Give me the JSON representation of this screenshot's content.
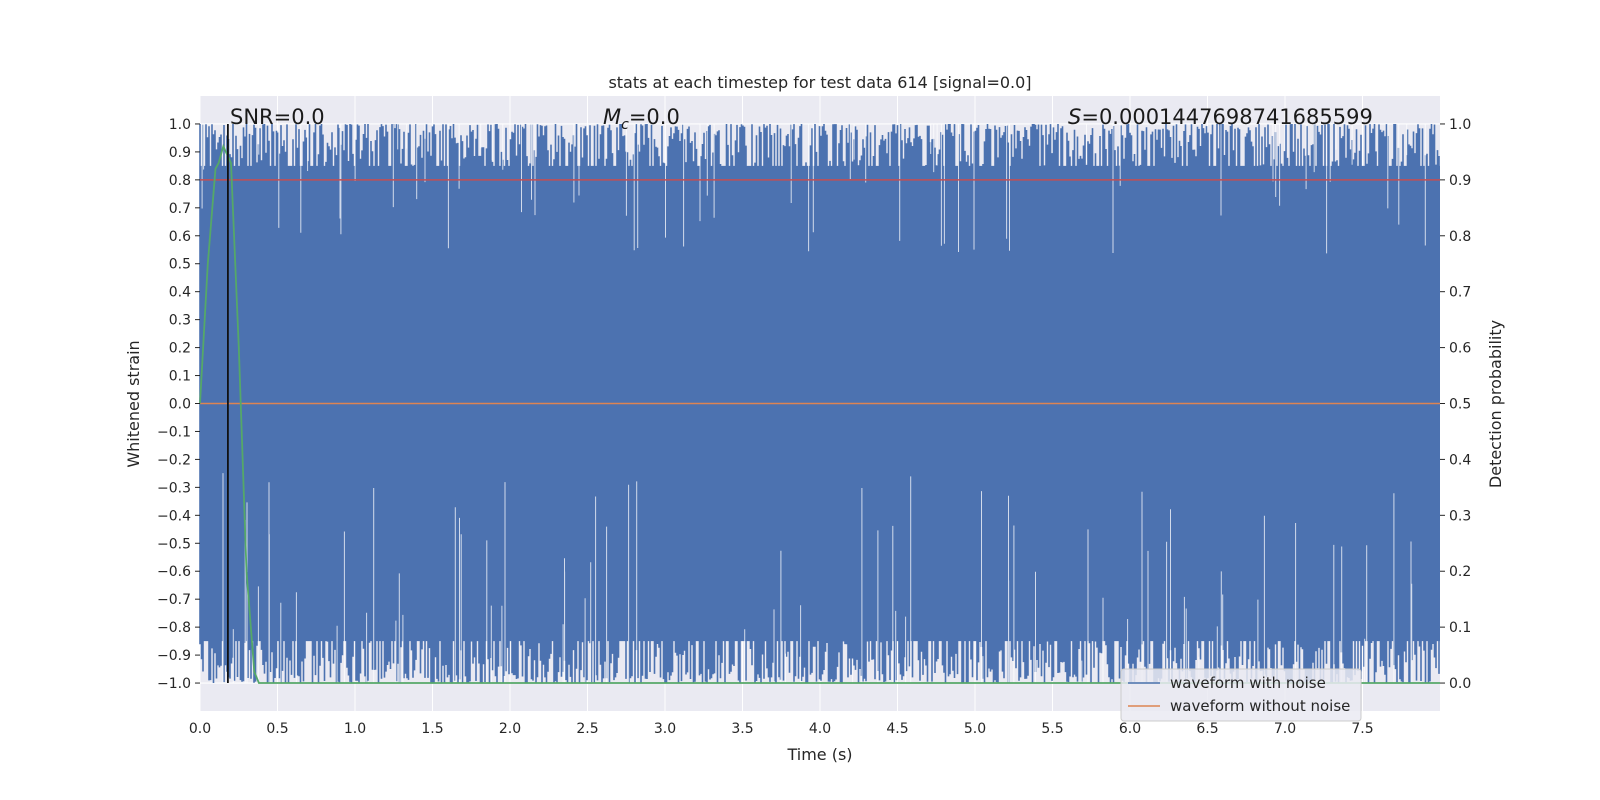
{
  "chart_data": {
    "type": "line",
    "title": "stats at each timestep for test data 614 [signal=0.0]",
    "xlabel": "Time (s)",
    "ylabel": "Whitened strain",
    "y2label": "Detection probability",
    "xlim": [
      0.0,
      8.0
    ],
    "ylim": [
      -1.1,
      1.1
    ],
    "y2lim": [
      -0.05,
      1.05
    ],
    "xticks": [
      "0.0",
      "0.5",
      "1.0",
      "1.5",
      "2.0",
      "2.5",
      "3.0",
      "3.5",
      "4.0",
      "4.5",
      "5.0",
      "5.5",
      "6.0",
      "6.5",
      "7.0",
      "7.5"
    ],
    "yticks": [
      "1.0",
      "0.9",
      "0.8",
      "0.7",
      "0.6",
      "0.5",
      "0.4",
      "0.3",
      "0.2",
      "0.1",
      "0.0",
      "−0.1",
      "−0.2",
      "−0.3",
      "−0.4",
      "−0.5",
      "−0.6",
      "−0.7",
      "−0.8",
      "−0.9",
      "−1.0"
    ],
    "y2ticks": [
      "1.0",
      "0.9",
      "0.8",
      "0.7",
      "0.6",
      "0.5",
      "0.4",
      "0.3",
      "0.2",
      "0.1",
      "0.0"
    ],
    "grid": true,
    "annotations": {
      "snr": "SNR=0.0",
      "mc_symbol": "M",
      "mc_sub": "c",
      "mc_value": "=0.0",
      "s_symbol": "S",
      "s_value": "=0.0001447698741685599"
    },
    "vline_x": 0.18,
    "threshold_y2": 0.9,
    "series": [
      {
        "name": "waveform with noise",
        "color": "#4c72b0",
        "description_range": [
          -1.0,
          1.0
        ]
      },
      {
        "name": "waveform without noise",
        "color": "#dd8452",
        "constant": 0.0
      },
      {
        "color": "#55a868",
        "x": [
          0.0,
          0.05,
          0.1,
          0.12,
          0.15,
          0.2,
          0.25,
          0.3,
          0.35,
          0.38,
          0.5,
          8.0
        ],
        "y2": [
          0.5,
          0.75,
          0.92,
          0.93,
          0.96,
          0.93,
          0.6,
          0.2,
          0.02,
          0.0,
          0.0,
          0.0
        ]
      }
    ],
    "threshold_color": "#c44e52",
    "legend_placement": "bottom-right"
  }
}
